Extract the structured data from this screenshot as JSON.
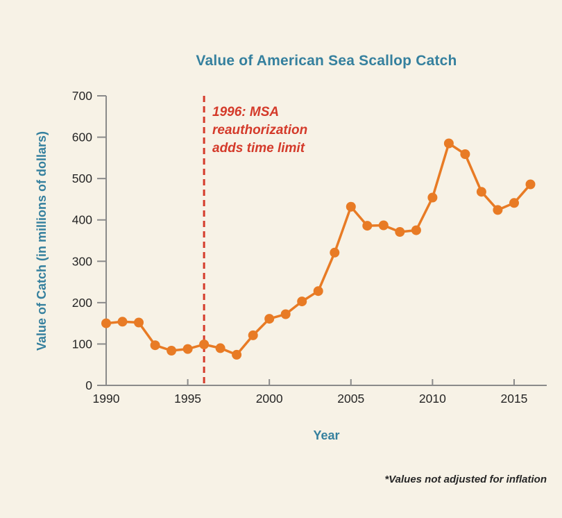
{
  "page": {
    "background_color": "#f7f2e6"
  },
  "chart_data": {
    "type": "line",
    "title": "Value of American Sea Scallop Catch",
    "xlabel": "Year",
    "ylabel": "Value of Catch (in millions of dollars)",
    "footnote": "*Values not adjusted for inflation",
    "x": [
      1990,
      1991,
      1992,
      1993,
      1994,
      1995,
      1996,
      1997,
      1998,
      1999,
      2000,
      2001,
      2002,
      2003,
      2004,
      2005,
      2006,
      2007,
      2008,
      2009,
      2010,
      2011,
      2012,
      2013,
      2014,
      2015,
      2016
    ],
    "values": [
      150,
      154,
      152,
      97,
      84,
      88,
      99,
      90,
      74,
      121,
      161,
      172,
      203,
      228,
      321,
      432,
      386,
      387,
      371,
      375,
      454,
      585,
      559,
      468,
      424,
      441,
      486
    ],
    "x_ticks": [
      1990,
      1995,
      2000,
      2005,
      2010,
      2015
    ],
    "y_ticks": [
      0,
      100,
      200,
      300,
      400,
      500,
      600,
      700
    ],
    "xlim": [
      1990,
      2017
    ],
    "ylim": [
      0,
      700
    ],
    "grid": false,
    "legend": null,
    "annotation_line_x": 1996,
    "annotation_lines": [
      "1996: MSA",
      "reauthorization",
      "adds time limit"
    ],
    "annotation_text": "1996: MSA reauthorization adds time limit",
    "colors": {
      "series_orange": "#e87b25",
      "annotation_red": "#d43a2a",
      "axis_gray": "#8a8a8a",
      "tick_text": "#262626",
      "accent_teal": "#35809e",
      "background_cream": "#f7f2e6"
    }
  }
}
